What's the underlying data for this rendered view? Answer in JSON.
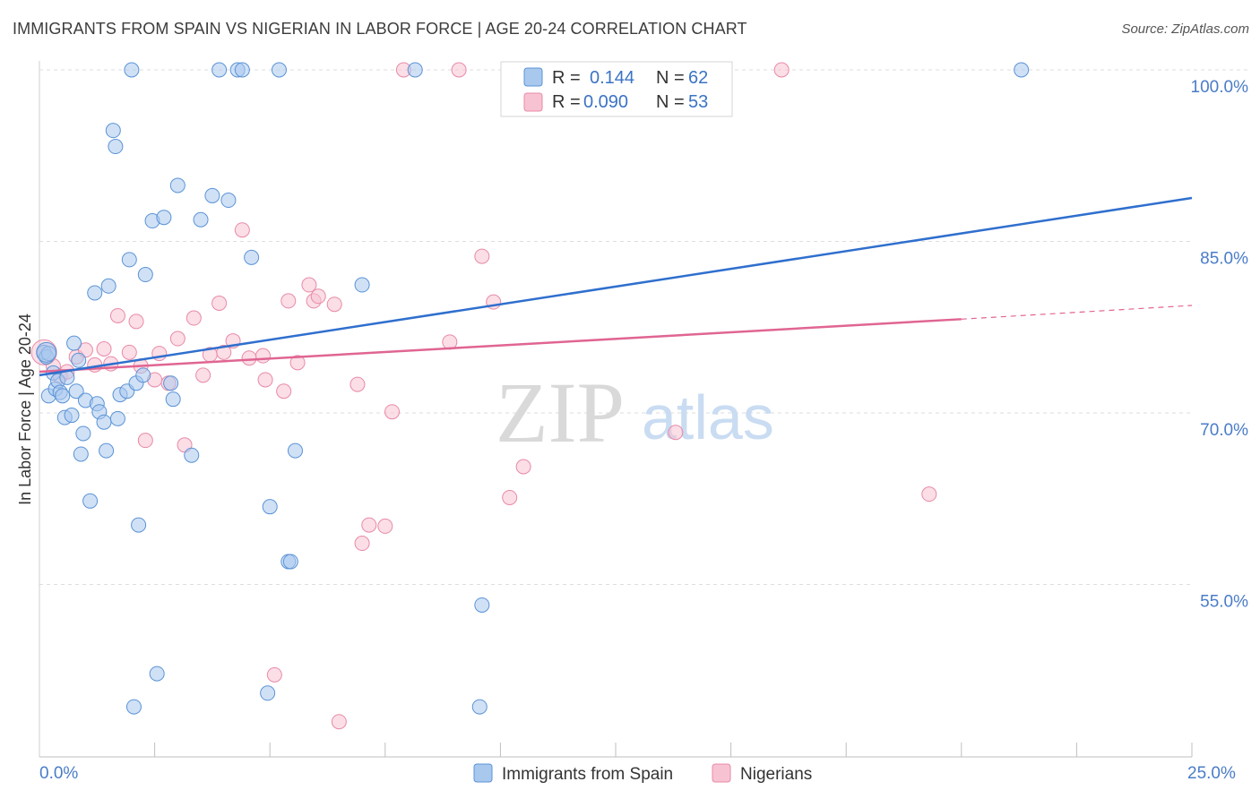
{
  "header": {
    "title": "IMMIGRANTS FROM SPAIN VS NIGERIAN IN LABOR FORCE | AGE 20-24 CORRELATION CHART",
    "source": "Source: ZipAtlas.com"
  },
  "watermark": {
    "zip": "ZIP",
    "atlas": "atlas"
  },
  "legend": {
    "r_label": "R =",
    "n_label": "N =",
    "series1": {
      "r": "0.144",
      "n": "62"
    },
    "series2": {
      "r": "0.090",
      "n": "53"
    }
  },
  "bottom_legend": {
    "series1": "Immigrants from Spain",
    "series2": "Nigerians"
  },
  "colors": {
    "blue_fill": "#a9c8ee",
    "blue_stroke": "#5b93d6",
    "blue_line": "#2f6fce",
    "pink_fill": "#f7c3d2",
    "pink_stroke": "#e88aa8",
    "pink_line": "#e06592"
  },
  "chart_data": {
    "type": "scatter",
    "title": "IMMIGRANTS FROM SPAIN VS NIGERIAN IN LABOR FORCE | AGE 20-24 CORRELATION CHART",
    "xlabel": "",
    "ylabel": "In Labor Force | Age 20-24",
    "xlim": [
      0,
      25
    ],
    "ylim": [
      40,
      102
    ],
    "x_tick_labels": [
      "0.0%",
      "25.0%"
    ],
    "y_ticks": [
      55,
      70,
      85,
      100
    ],
    "y_tick_labels": [
      "55.0%",
      "70.0%",
      "85.0%",
      "100.0%"
    ],
    "grid": true,
    "series": [
      {
        "name": "Immigrants from Spain",
        "r": 0.144,
        "n": 62,
        "trend": {
          "x": [
            0,
            25
          ],
          "y": [
            73.3,
            88.8
          ]
        },
        "points": [
          [
            0.1,
            75.3
          ],
          [
            0.15,
            74.9
          ],
          [
            0.2,
            75.2
          ],
          [
            0.2,
            71.5
          ],
          [
            0.3,
            73.5
          ],
          [
            0.35,
            72.1
          ],
          [
            0.4,
            72.8
          ],
          [
            0.45,
            71.8
          ],
          [
            0.5,
            71.5
          ],
          [
            0.55,
            69.6
          ],
          [
            0.6,
            73.1
          ],
          [
            0.7,
            69.8
          ],
          [
            0.75,
            76.1
          ],
          [
            0.8,
            71.9
          ],
          [
            0.85,
            74.6
          ],
          [
            0.9,
            66.4
          ],
          [
            0.95,
            68.2
          ],
          [
            1.0,
            71.1
          ],
          [
            1.1,
            62.3
          ],
          [
            1.2,
            80.5
          ],
          [
            1.25,
            70.8
          ],
          [
            1.3,
            70.1
          ],
          [
            1.4,
            69.2
          ],
          [
            1.45,
            66.7
          ],
          [
            1.5,
            81.1
          ],
          [
            1.6,
            94.7
          ],
          [
            1.65,
            93.3
          ],
          [
            1.7,
            69.5
          ],
          [
            1.75,
            71.6
          ],
          [
            1.9,
            71.9
          ],
          [
            1.95,
            83.4
          ],
          [
            2.0,
            100.0
          ],
          [
            2.1,
            72.6
          ],
          [
            2.15,
            60.2
          ],
          [
            2.25,
            73.3
          ],
          [
            2.3,
            82.1
          ],
          [
            2.45,
            86.8
          ],
          [
            2.55,
            47.2
          ],
          [
            2.7,
            87.1
          ],
          [
            2.85,
            72.6
          ],
          [
            2.9,
            71.2
          ],
          [
            3.0,
            89.9
          ],
          [
            3.3,
            66.3
          ],
          [
            3.5,
            86.9
          ],
          [
            3.75,
            89.0
          ],
          [
            3.9,
            100.0
          ],
          [
            4.1,
            88.6
          ],
          [
            4.3,
            100.0
          ],
          [
            4.4,
            100.0
          ],
          [
            4.6,
            83.6
          ],
          [
            4.95,
            45.5
          ],
          [
            5.0,
            61.8
          ],
          [
            5.2,
            100.0
          ],
          [
            5.4,
            57.0
          ],
          [
            5.45,
            57.0
          ],
          [
            5.55,
            66.7
          ],
          [
            7.0,
            81.2
          ],
          [
            8.15,
            100.0
          ],
          [
            9.55,
            44.3
          ],
          [
            9.6,
            53.2
          ],
          [
            2.05,
            44.3
          ],
          [
            21.3,
            100.0
          ]
        ]
      },
      {
        "name": "Nigerians",
        "r": 0.09,
        "n": 53,
        "trend": {
          "x": [
            0,
            20
          ],
          "y": [
            73.6,
            78.2
          ]
        },
        "trend_dashed": {
          "x": [
            20,
            25
          ],
          "y": [
            78.2,
            79.4
          ]
        },
        "points": [
          [
            0.1,
            75.3
          ],
          [
            0.3,
            74.1
          ],
          [
            0.45,
            73.2
          ],
          [
            0.6,
            73.6
          ],
          [
            0.8,
            74.9
          ],
          [
            1.0,
            75.5
          ],
          [
            1.2,
            74.2
          ],
          [
            1.4,
            75.6
          ],
          [
            1.55,
            74.3
          ],
          [
            1.7,
            78.5
          ],
          [
            1.95,
            75.3
          ],
          [
            2.1,
            78.0
          ],
          [
            2.2,
            74.1
          ],
          [
            2.3,
            67.6
          ],
          [
            2.5,
            72.9
          ],
          [
            2.6,
            75.2
          ],
          [
            2.8,
            72.6
          ],
          [
            3.0,
            76.5
          ],
          [
            3.15,
            67.2
          ],
          [
            3.35,
            78.3
          ],
          [
            3.55,
            73.3
          ],
          [
            3.7,
            75.1
          ],
          [
            3.9,
            79.6
          ],
          [
            4.0,
            75.3
          ],
          [
            4.2,
            76.3
          ],
          [
            4.4,
            86.0
          ],
          [
            4.55,
            74.8
          ],
          [
            4.85,
            75.0
          ],
          [
            4.9,
            72.9
          ],
          [
            5.3,
            71.9
          ],
          [
            5.4,
            79.8
          ],
          [
            5.6,
            74.4
          ],
          [
            5.85,
            81.2
          ],
          [
            5.95,
            79.8
          ],
          [
            6.05,
            80.2
          ],
          [
            6.4,
            79.5
          ],
          [
            6.5,
            43.0
          ],
          [
            6.9,
            72.5
          ],
          [
            7.0,
            58.6
          ],
          [
            7.15,
            60.2
          ],
          [
            7.5,
            60.1
          ],
          [
            7.65,
            70.1
          ],
          [
            8.9,
            76.2
          ],
          [
            9.6,
            83.7
          ],
          [
            9.85,
            79.7
          ],
          [
            10.2,
            62.6
          ],
          [
            10.5,
            65.3
          ],
          [
            13.8,
            68.3
          ],
          [
            16.1,
            100.0
          ],
          [
            19.3,
            62.9
          ],
          [
            5.1,
            47.1
          ],
          [
            7.9,
            100.0
          ],
          [
            9.1,
            100.0
          ]
        ]
      }
    ]
  }
}
